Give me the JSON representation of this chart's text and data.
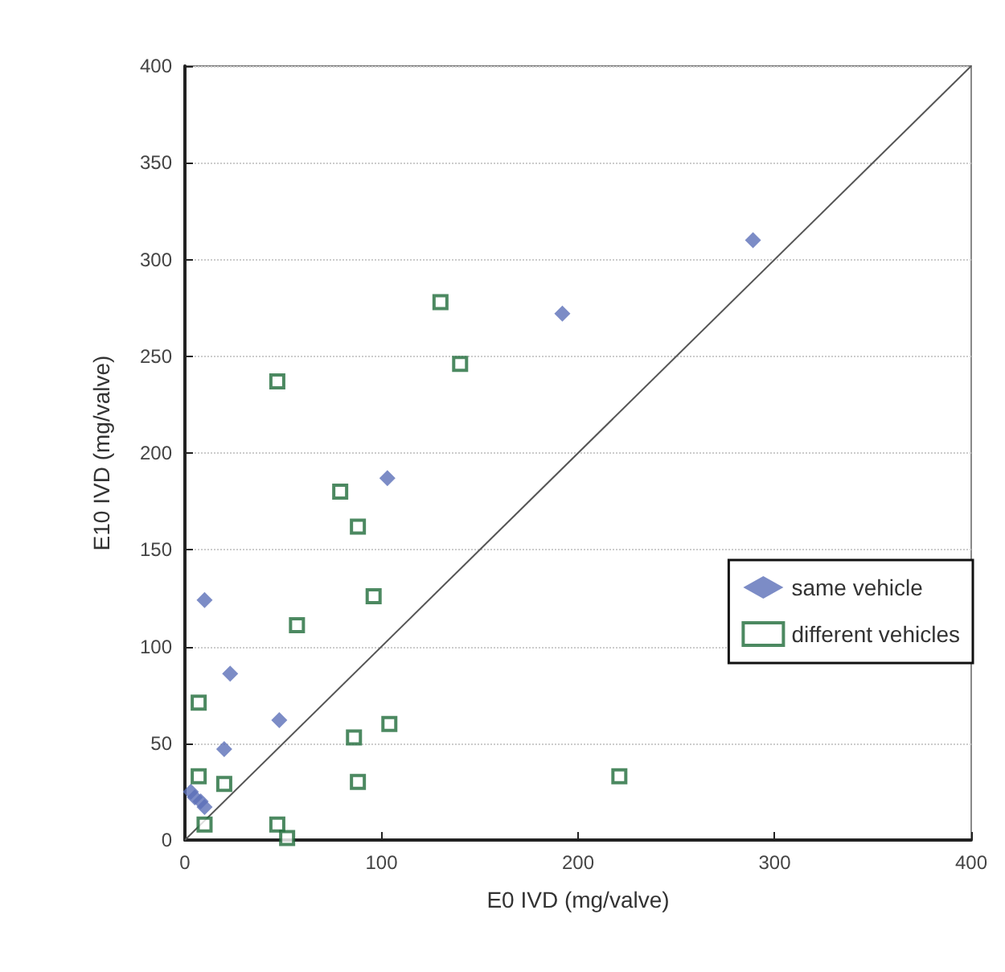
{
  "chart_data": {
    "type": "scatter",
    "xlabel": "E0 IVD (mg/valve)",
    "ylabel": "E10 IVD (mg/valve)",
    "xlim": [
      0,
      400
    ],
    "xticks": [
      0,
      100,
      200,
      300,
      400
    ],
    "ylim": [
      0,
      400
    ],
    "yticks": [
      0,
      50,
      100,
      150,
      200,
      250,
      300,
      350,
      400
    ],
    "grid": "y",
    "legend": "right",
    "series": [
      {
        "name": "same vehicle",
        "color": "#5b6fb8",
        "marker": "diamond",
        "x": [
          289,
          192,
          103,
          10,
          23,
          48,
          20,
          7,
          3,
          5,
          10,
          8
        ],
        "values": [
          310,
          272,
          187,
          124,
          86,
          62,
          47,
          null,
          25,
          22,
          17,
          20
        ]
      },
      {
        "name": "different vehicles",
        "color": "#1f6b3a",
        "marker": "square",
        "x": [
          130,
          140,
          47,
          79,
          88,
          57,
          96,
          86,
          104,
          88,
          221,
          7,
          7,
          20,
          47,
          52,
          10
        ],
        "values": [
          278,
          246,
          237,
          180,
          162,
          111,
          126,
          53,
          60,
          30,
          33,
          71,
          33,
          29,
          8,
          1,
          8
        ]
      },
      {
        "type": "line",
        "color": "#555555",
        "marker": "none",
        "x": [
          0,
          400
        ],
        "values": [
          0,
          400
        ]
      }
    ]
  }
}
